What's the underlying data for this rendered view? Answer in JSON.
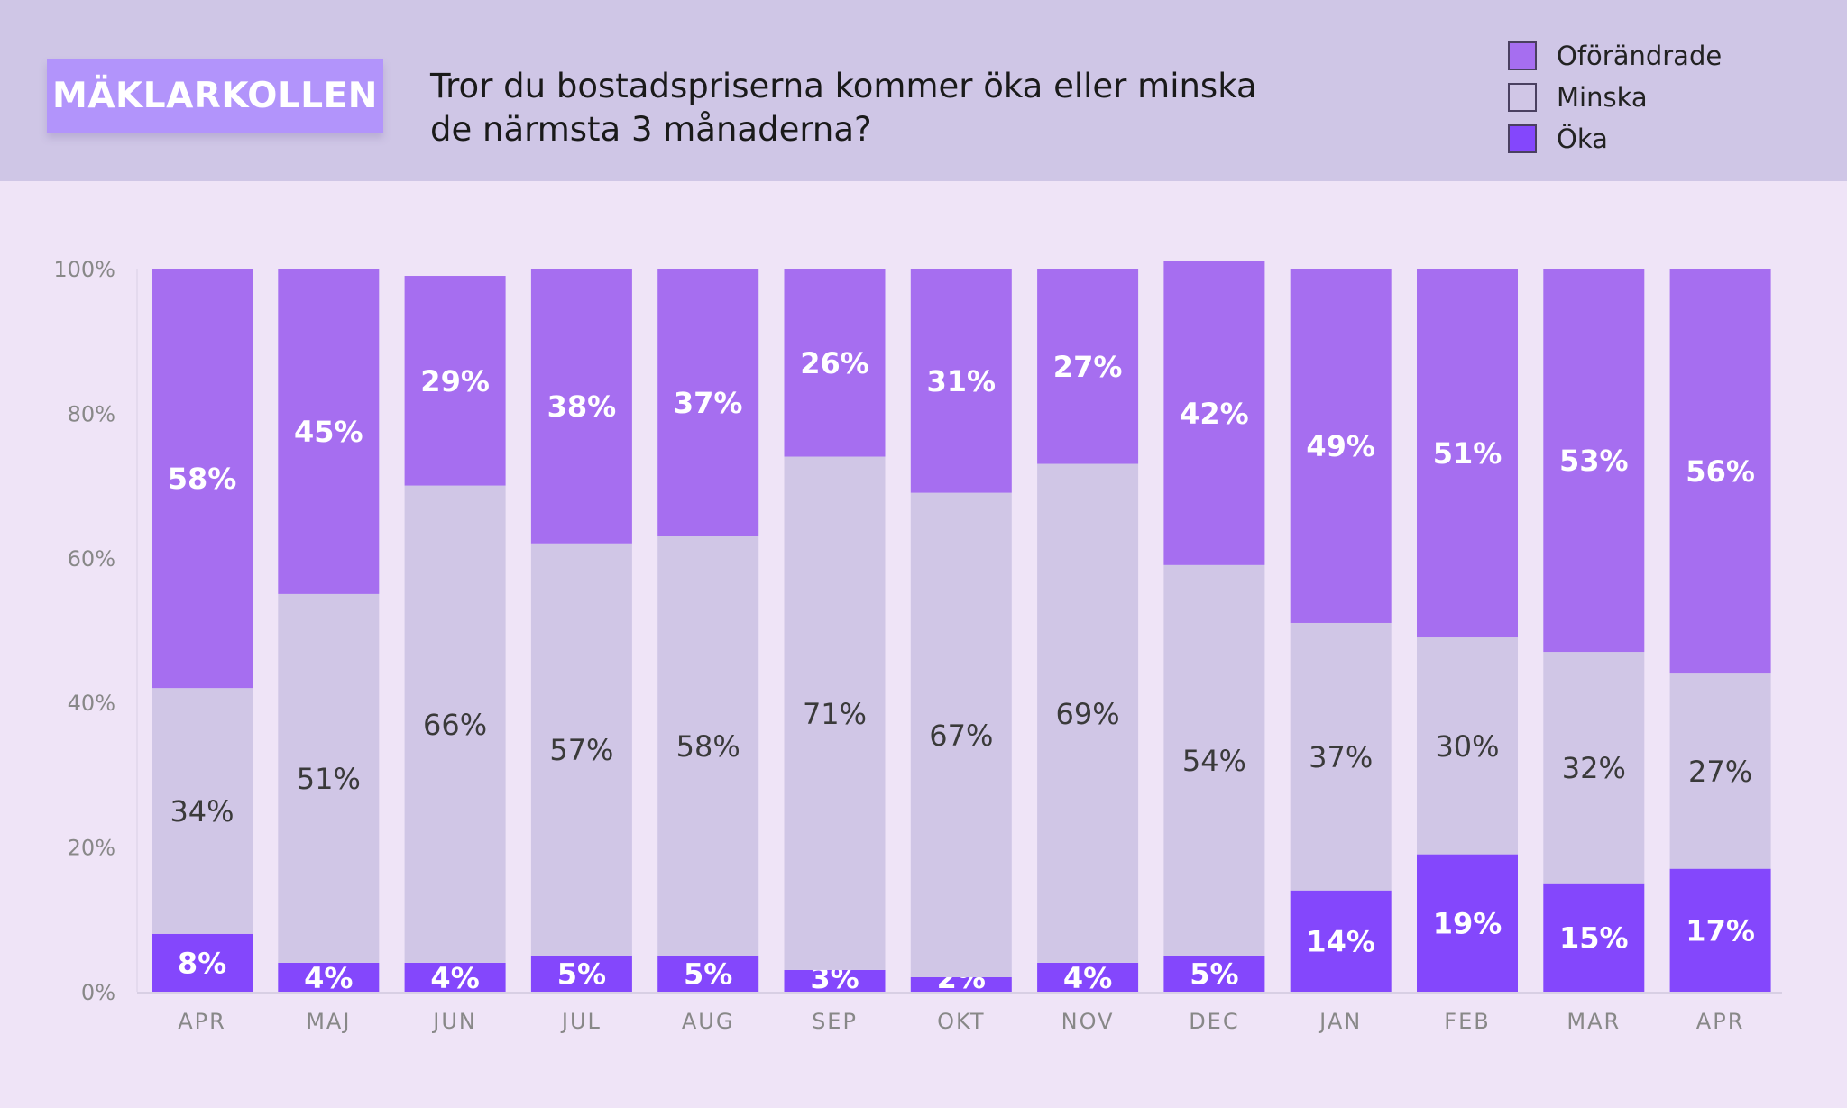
{
  "header": {
    "logo": "MÄKLARKOLLEN",
    "title_line1": "Tror du bostadspriserna kommer öka eller minska",
    "title_line2": "de närmsta 3 månaderna?"
  },
  "colors": {
    "header_bg": "#cfc6e6",
    "page_bg": "#efe4f7",
    "logo_bg": "#b294fb"
  },
  "chart_data": {
    "type": "bar",
    "stacked": true,
    "categories": [
      "APR",
      "MAJ",
      "JUN",
      "JUL",
      "AUG",
      "SEP",
      "OKT",
      "NOV",
      "DEC",
      "JAN",
      "FEB",
      "MAR",
      "APR"
    ],
    "series": [
      {
        "name": "Öka",
        "color": "#8447fc",
        "label_color": "#ffffff",
        "values": [
          8,
          4,
          4,
          5,
          5,
          3,
          2,
          4,
          5,
          14,
          19,
          15,
          17
        ]
      },
      {
        "name": "Minska",
        "color": "#d0c6e6",
        "label_color": "#3a3a3a",
        "values": [
          34,
          51,
          66,
          57,
          58,
          71,
          67,
          69,
          54,
          37,
          30,
          32,
          27
        ]
      },
      {
        "name": "Oförändrade",
        "color": "#a66ef0",
        "label_color": "#ffffff",
        "values": [
          58,
          45,
          29,
          38,
          37,
          26,
          31,
          27,
          42,
          49,
          51,
          53,
          56
        ]
      }
    ],
    "legend_order": [
      "Oförändrade",
      "Minska",
      "Öka"
    ],
    "legend_position": "top-right",
    "ylim": [
      0,
      100
    ],
    "yticks": [
      "0%",
      "20%",
      "40%",
      "60%",
      "80%",
      "100%"
    ],
    "grid": false
  }
}
